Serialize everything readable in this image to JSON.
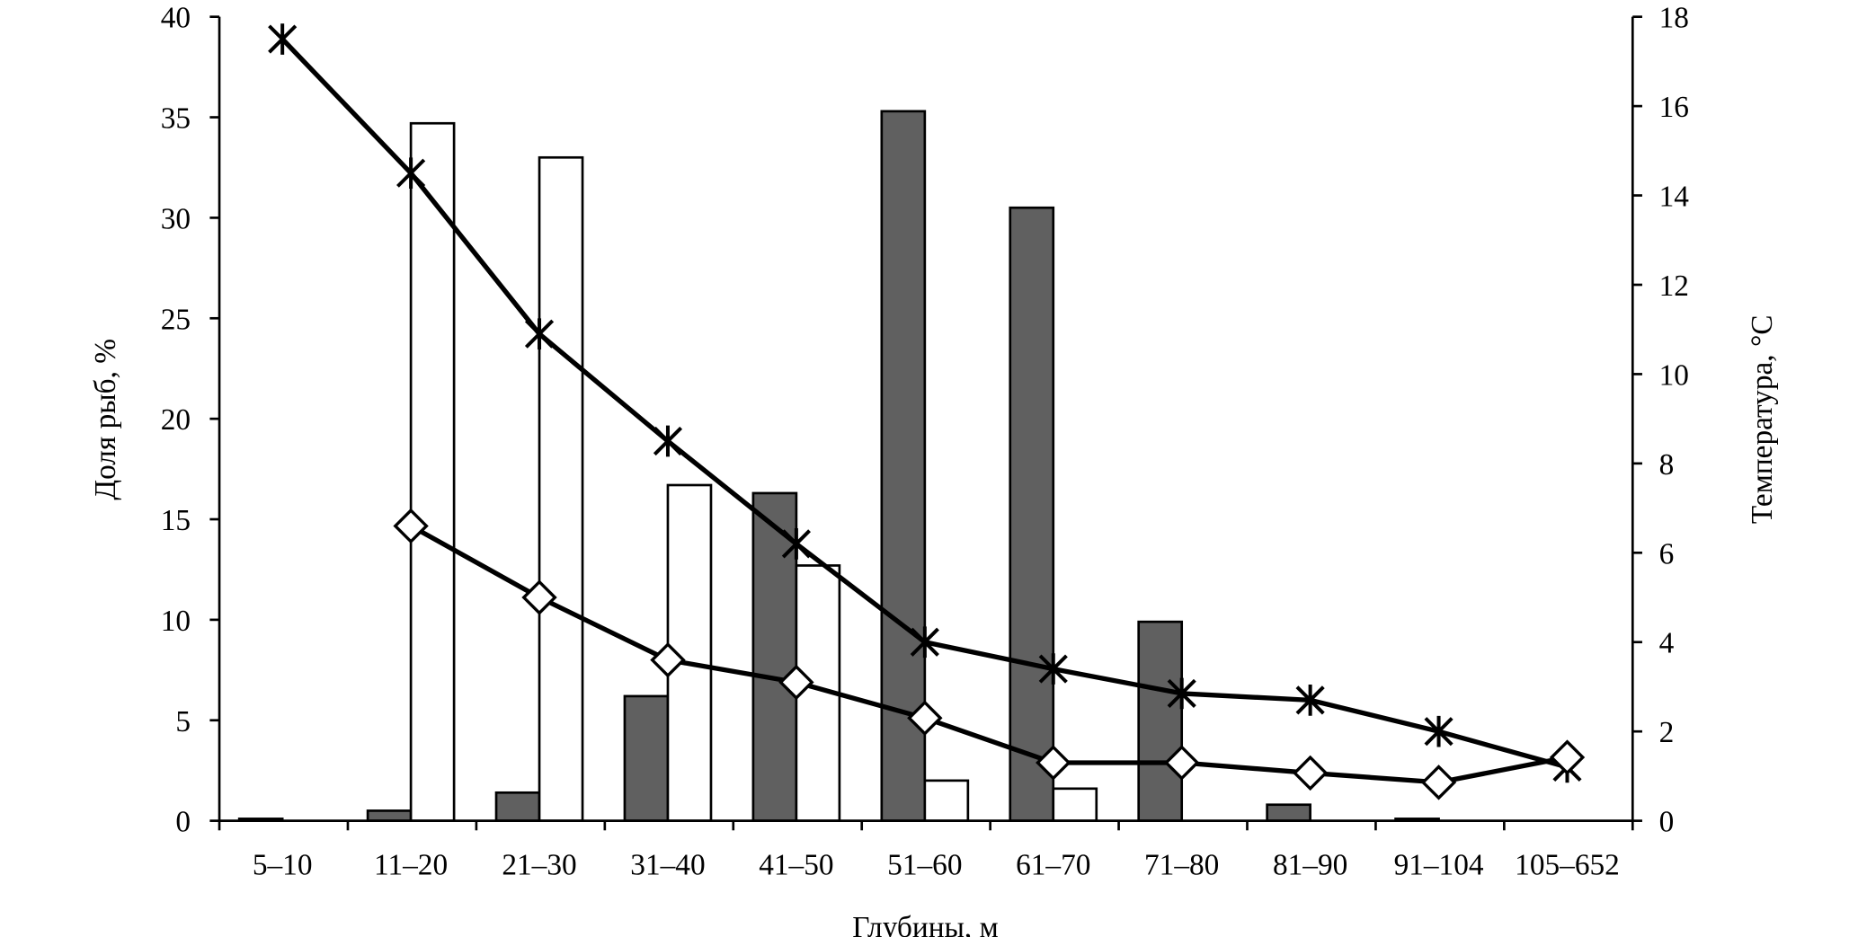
{
  "chart_data": {
    "type": "bar",
    "title": "",
    "xlabel": "Глубины, м",
    "ylabel": "Доля рыб, %",
    "y2label": "Температура, °C",
    "ylim": [
      0,
      40
    ],
    "y2lim": [
      0,
      18
    ],
    "yticks": [
      0,
      5,
      10,
      15,
      20,
      25,
      30,
      35,
      40
    ],
    "y2ticks": [
      0,
      2,
      4,
      6,
      8,
      10,
      12,
      14,
      16,
      18
    ],
    "grid": false,
    "categories": [
      "5–10",
      "11–20",
      "21–30",
      "31–40",
      "41–50",
      "51–60",
      "61–70",
      "71–80",
      "81–90",
      "91–104",
      "105–652"
    ],
    "bar_series": [
      {
        "name": "dark bars",
        "color": "#606060",
        "values": [
          0.1,
          0.5,
          1.4,
          6.2,
          16.3,
          35.3,
          30.5,
          9.9,
          0.8,
          0.1,
          0
        ]
      },
      {
        "name": "white bars",
        "color": "#ffffff",
        "values": [
          0,
          34.7,
          33.0,
          16.7,
          12.7,
          2.0,
          1.6,
          0,
          0,
          0,
          0
        ]
      }
    ],
    "line_series": [
      {
        "name": "star-marker line",
        "axis": "right",
        "marker": "star",
        "values": [
          17.5,
          14.5,
          10.9,
          8.5,
          6.2,
          4.0,
          3.4,
          2.85,
          2.7,
          2.0,
          1.2
        ]
      },
      {
        "name": "diamond-marker line",
        "axis": "right",
        "marker": "diamond",
        "values": [
          null,
          6.6,
          5.0,
          3.6,
          3.1,
          2.3,
          1.3,
          1.3,
          1.07,
          0.86,
          1.42
        ]
      }
    ]
  }
}
